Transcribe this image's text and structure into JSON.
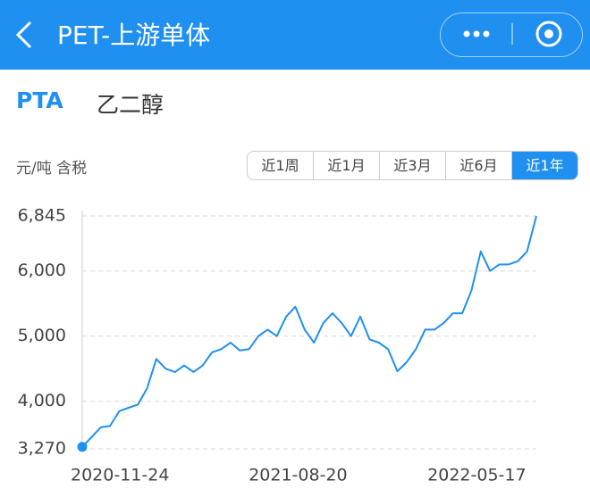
{
  "header": {
    "title": "PET-上游单体"
  },
  "tabs": [
    "PTA",
    "乙二醇"
  ],
  "unit": "元/吨 含税",
  "ranges": {
    "options": [
      "近1周",
      "近1月",
      "近3月",
      "近6月",
      "近1年"
    ],
    "active": "近1年"
  },
  "chart_data": {
    "type": "line",
    "x": [
      "2020-09-28",
      "2020-10-12",
      "2020-10-26",
      "2020-11-09",
      "2020-11-23",
      "2020-12-07",
      "2020-12-21",
      "2021-01-04",
      "2021-01-18",
      "2021-02-01",
      "2021-02-15",
      "2021-03-01",
      "2021-03-15",
      "2021-03-29",
      "2021-04-12",
      "2021-04-26",
      "2021-05-10",
      "2021-05-24",
      "2021-06-07",
      "2021-06-21",
      "2021-07-05",
      "2021-07-19",
      "2021-08-02",
      "2021-08-16",
      "2021-08-30",
      "2021-09-13",
      "2021-09-27",
      "2021-10-11",
      "2021-10-25",
      "2021-11-08",
      "2021-11-22",
      "2021-12-06",
      "2021-12-20",
      "2022-01-03",
      "2022-01-17",
      "2022-01-31",
      "2022-02-14",
      "2022-02-28",
      "2022-03-14",
      "2022-03-28",
      "2022-04-11",
      "2022-04-25",
      "2022-05-09",
      "2022-05-23",
      "2022-06-06",
      "2022-06-20",
      "2022-07-04",
      "2022-07-18",
      "2022-08-01",
      "2022-08-15"
    ],
    "series": [
      {
        "name": "PTA",
        "color": "#1f8ff0",
        "values": [
          3300,
          3450,
          3600,
          3620,
          3850,
          3900,
          3950,
          4200,
          4650,
          4500,
          4450,
          4550,
          4450,
          4550,
          4750,
          4800,
          4900,
          4780,
          4800,
          5000,
          5100,
          5000,
          5300,
          5450,
          5100,
          4900,
          5200,
          5350,
          5200,
          5000,
          5300,
          4950,
          4900,
          4800,
          4460,
          4600,
          4800,
          5100,
          5100,
          5200,
          5350,
          5350,
          5700,
          6300,
          6000,
          6100,
          6100,
          6150,
          6300,
          6845
        ]
      }
    ],
    "ylim": [
      3270,
      6845
    ],
    "yticks": [
      {
        "value": 3270,
        "label": "3,270"
      },
      {
        "value": 4000,
        "label": "4,000"
      },
      {
        "value": 5000,
        "label": "5,000"
      },
      {
        "value": 6000,
        "label": "6,000"
      },
      {
        "value": 6845,
        "label": "6,845"
      }
    ],
    "xticks": [
      "2020-11-24",
      "2021-08-20",
      "2022-05-17"
    ],
    "grid": true
  }
}
